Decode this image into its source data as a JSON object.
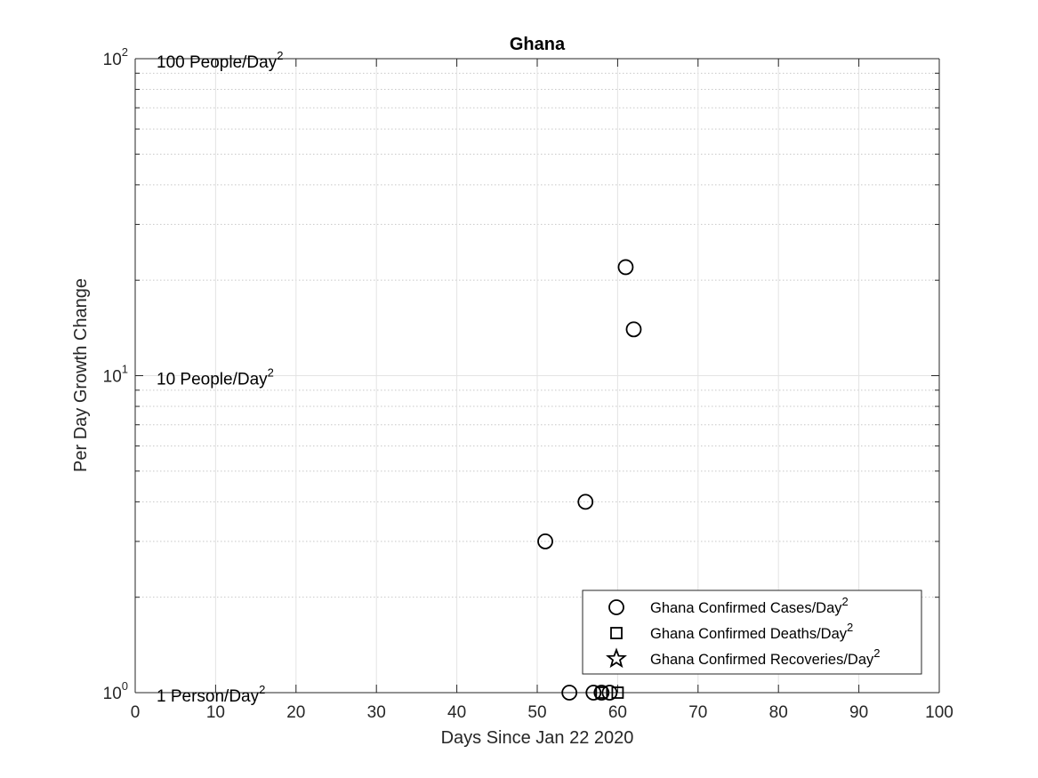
{
  "chart_data": {
    "type": "scatter",
    "title": "Ghana",
    "xlabel": "Days Since Jan 22 2020",
    "ylabel": "Per Day Growth Change",
    "xlim": [
      0,
      100
    ],
    "ylim": [
      1,
      100
    ],
    "yscale": "log",
    "grid": true,
    "minor_grid": true,
    "x_ticks": [
      0,
      10,
      20,
      30,
      40,
      50,
      60,
      70,
      80,
      90,
      100
    ],
    "y_ticks": [
      {
        "value": 1,
        "base": "10",
        "exp": "0"
      },
      {
        "value": 10,
        "base": "10",
        "exp": "1"
      },
      {
        "value": 100,
        "base": "10",
        "exp": "2"
      }
    ],
    "annotations": [
      {
        "y": 100,
        "text": "100 People/Day",
        "sup": "2"
      },
      {
        "y": 10,
        "text": "10 People/Day",
        "sup": "2"
      },
      {
        "y": 1,
        "text": "1 Person/Day",
        "sup": "2"
      }
    ],
    "legend_position": "bottom-right",
    "series": [
      {
        "name": "Ghana Confirmed Cases/Day",
        "name_sup": "2",
        "marker": "circle",
        "x": [
          51,
          54,
          56,
          57,
          58,
          59,
          61,
          62
        ],
        "y": [
          3,
          1,
          4,
          1,
          1,
          1,
          22,
          14
        ]
      },
      {
        "name": "Ghana Confirmed Deaths/Day",
        "name_sup": "2",
        "marker": "square",
        "x": [
          58,
          60
        ],
        "y": [
          1,
          1
        ]
      },
      {
        "name": "Ghana Confirmed Recoveries/Day",
        "name_sup": "2",
        "marker": "star",
        "x": [],
        "y": []
      }
    ]
  }
}
